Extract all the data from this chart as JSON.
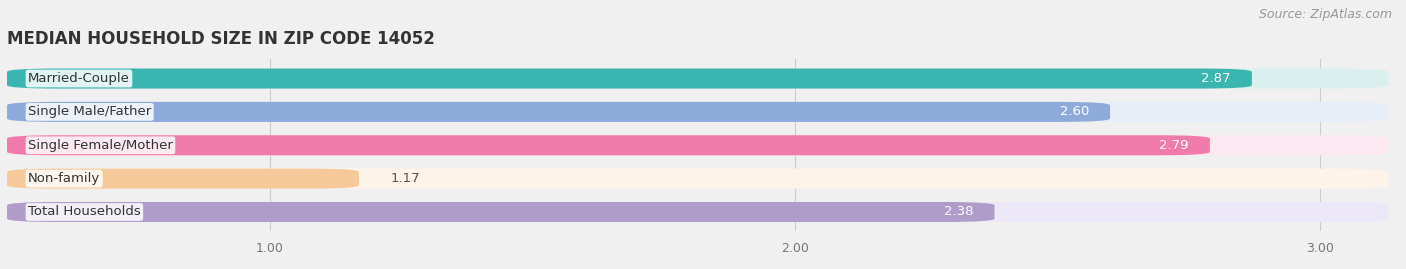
{
  "title": "MEDIAN HOUSEHOLD SIZE IN ZIP CODE 14052",
  "source": "Source: ZipAtlas.com",
  "categories": [
    "Married-Couple",
    "Single Male/Father",
    "Single Female/Mother",
    "Non-family",
    "Total Households"
  ],
  "values": [
    2.87,
    2.6,
    2.79,
    1.17,
    2.38
  ],
  "bar_colors": [
    "#3ab5b0",
    "#8eaadb",
    "#f07aaa",
    "#f5c99a",
    "#b09cc8"
  ],
  "label_colors": [
    "white",
    "white",
    "white",
    "dark",
    "white"
  ],
  "bar_bg_colors": [
    "#daf0ef",
    "#e8eef8",
    "#fde8f2",
    "#fdf3e8",
    "#ede8f8"
  ],
  "xlim_min": 0.5,
  "xlim_max": 3.15,
  "xticks": [
    1.0,
    2.0,
    3.0
  ],
  "bar_height": 0.6,
  "title_fontsize": 12,
  "label_fontsize": 9.5,
  "value_fontsize": 9.5,
  "source_fontsize": 9,
  "background_color": "#f0f0f0"
}
